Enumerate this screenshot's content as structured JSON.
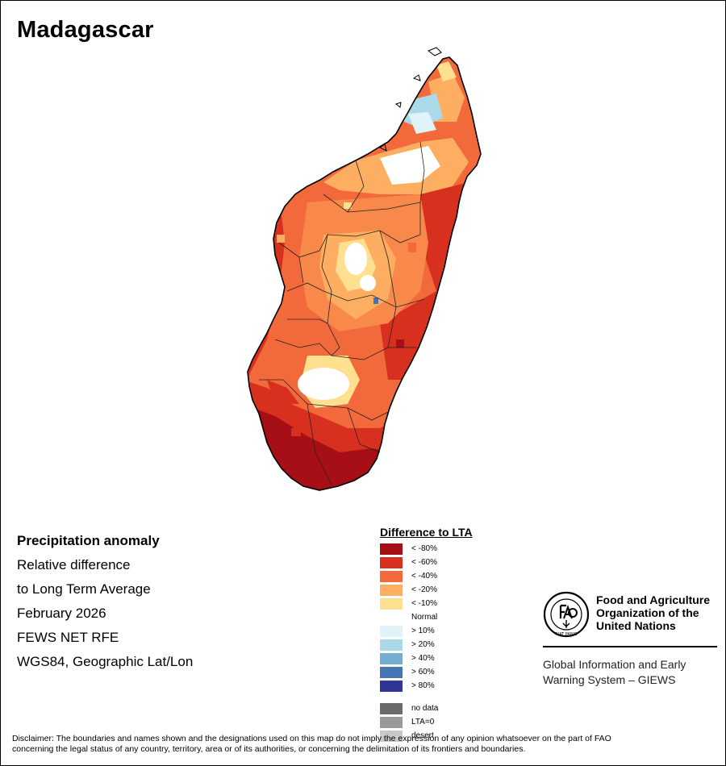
{
  "map": {
    "title": "Madagascar"
  },
  "info": {
    "line1": "Precipitation anomaly",
    "line2": "Relative difference",
    "line3": "to Long Term Average",
    "line4": "February 2026",
    "line5": "FEWS NET RFE",
    "line6": "WGS84, Geographic Lat/Lon"
  },
  "legend": {
    "title": "Difference to LTA",
    "items": [
      {
        "label": "< -80%",
        "color": "#a50f15"
      },
      {
        "label": "< -60%",
        "color": "#d7301f"
      },
      {
        "label": "< -40%",
        "color": "#f26a3c"
      },
      {
        "label": "< -20%",
        "color": "#fdae61"
      },
      {
        "label": "< -10%",
        "color": "#fee090"
      },
      {
        "label": "Normal",
        "color": "#ffffff"
      },
      {
        "label": "> 10%",
        "color": "#e0f3f8"
      },
      {
        "label": "> 20%",
        "color": "#abd9e9"
      },
      {
        "label": "> 40%",
        "color": "#74add1"
      },
      {
        "label": "> 60%",
        "color": "#4575b4"
      },
      {
        "label": "> 80%",
        "color": "#313695"
      }
    ],
    "extra": [
      {
        "label": "no data",
        "color": "#6b6b6b"
      },
      {
        "label": "LTA=0",
        "color": "#9a9a9a"
      },
      {
        "label": "desert",
        "color": "#c8c8c8"
      }
    ]
  },
  "fao": {
    "name_line1": "Food and Agriculture",
    "name_line2": "Organization of the",
    "name_line3": "United Nations",
    "system_line1": "Global Information and Early",
    "system_line2": "Warning System – GIEWS",
    "logo_text": "FIAT PANIS"
  },
  "disclaimer": {
    "line1": "Disclaimer: The boundaries and names shown and the designations used on this map do not imply the expression of any opinion whatsoever on the part of FAO",
    "line2": "concerning the legal status of any country, territory, area or of its authorities, or concerning the delimitation of its frontiers and boundaries."
  }
}
